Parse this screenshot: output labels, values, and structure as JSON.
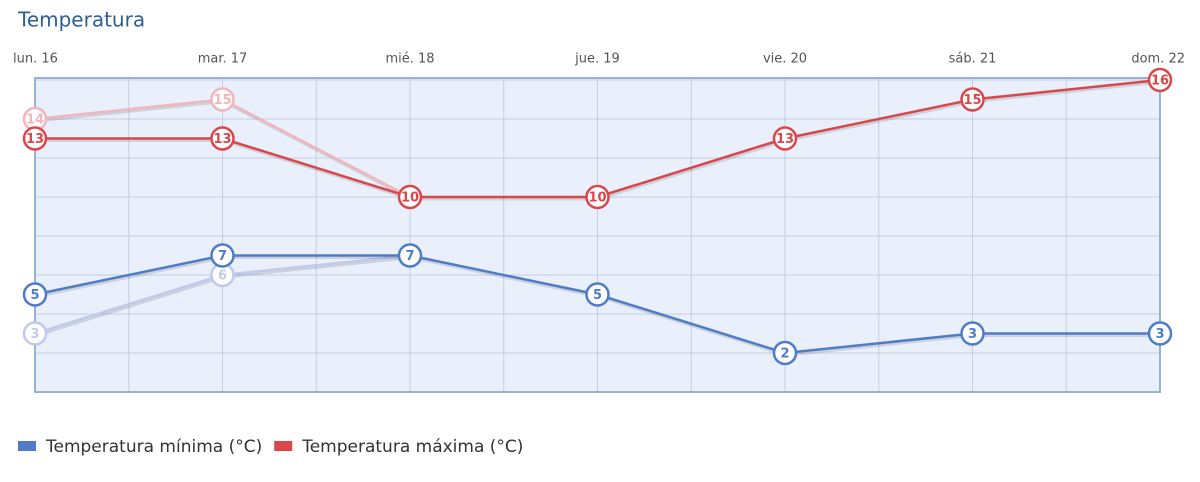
{
  "chart_data": {
    "type": "line",
    "title": "Temperatura",
    "categories": [
      "lun. 16",
      "mar. 17",
      "mié. 18",
      "jue. 19",
      "vie. 20",
      "sáb. 21",
      "dom. 22"
    ],
    "ylim": [
      0,
      16
    ],
    "yticks": [
      0,
      2,
      4,
      6,
      8,
      10,
      12,
      14,
      16
    ],
    "grid": true,
    "series": [
      {
        "color": "#c2c9ee",
        "values": [
          3,
          6,
          7,
          null,
          null,
          null,
          null
        ]
      },
      {
        "color": "#f2b5bb",
        "values": [
          14,
          15,
          10,
          null,
          null,
          null,
          null
        ]
      },
      {
        "name": "Temperatura mínima (°C)",
        "color": "#4f7cc6",
        "values": [
          5,
          7,
          7,
          5,
          2,
          3,
          3
        ]
      },
      {
        "name": "Temperatura máxima (°C)",
        "color": "#d9474b",
        "values": [
          13,
          13,
          10,
          10,
          13,
          15,
          16
        ]
      }
    ]
  }
}
